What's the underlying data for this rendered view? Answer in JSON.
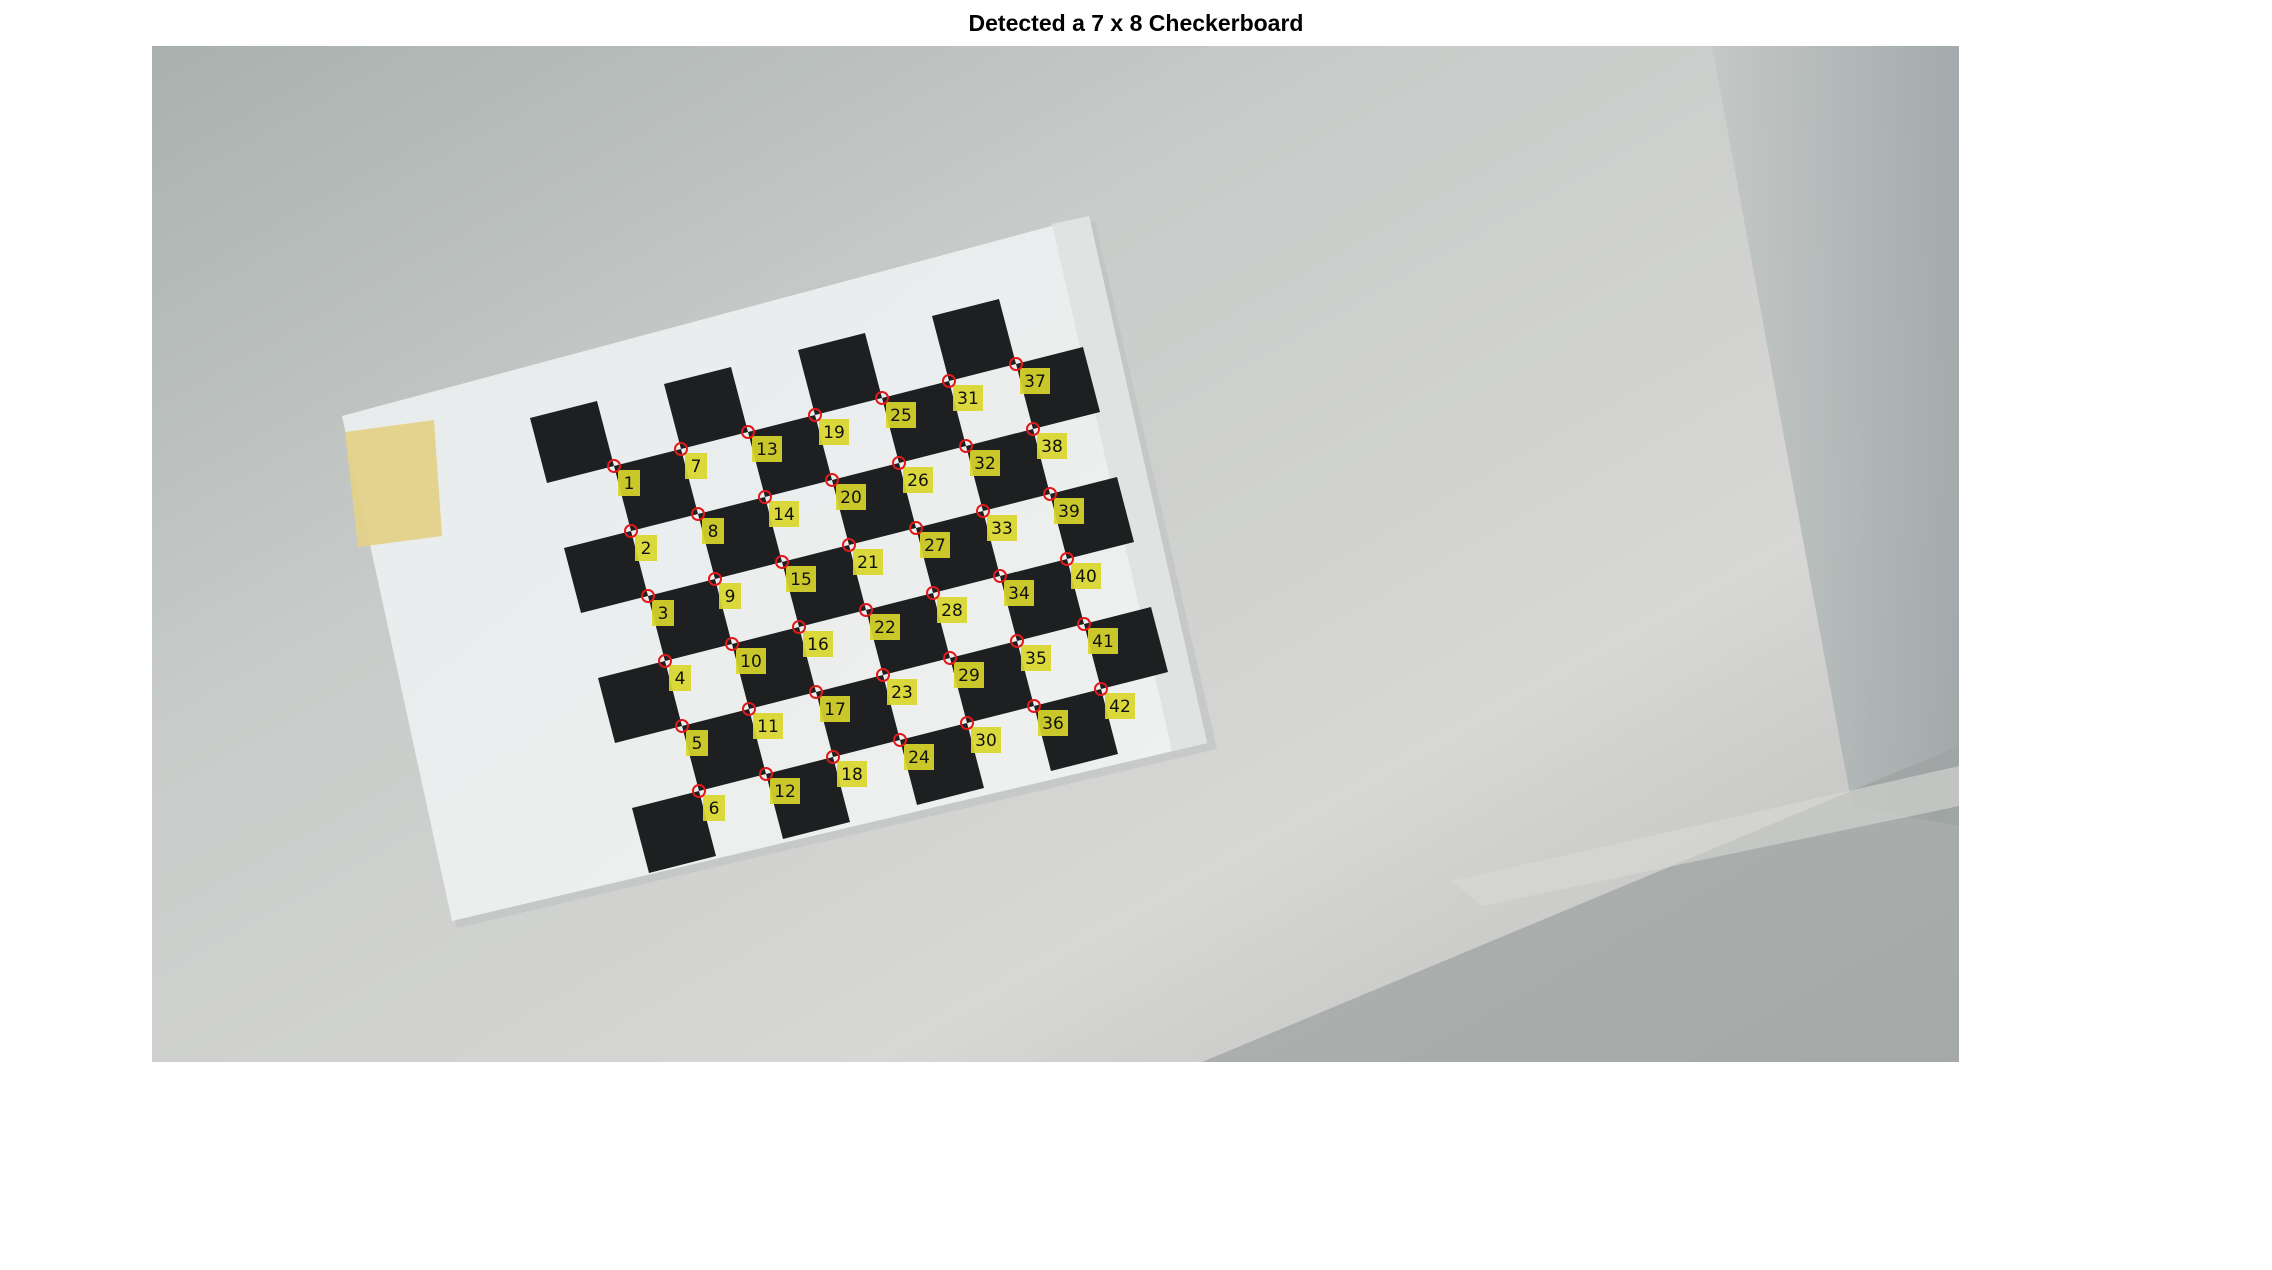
{
  "figure": {
    "title": "Detected a 7 x 8 Checkerboard"
  },
  "image": {
    "subject": "checkerboard-calibration-photo"
  },
  "detected_points": {
    "labels": [
      "1",
      "2",
      "3",
      "4",
      "5",
      "6",
      "7",
      "8",
      "9",
      "10",
      "11",
      "12",
      "13",
      "14",
      "15",
      "16",
      "17",
      "18",
      "19",
      "20",
      "21",
      "22",
      "23",
      "24",
      "25",
      "26",
      "27",
      "28",
      "29",
      "30",
      "31",
      "32",
      "33",
      "34",
      "35",
      "36",
      "37",
      "38",
      "39",
      "40",
      "41",
      "42"
    ],
    "marker_color": "#e0191b",
    "label_bg_color": "#d8d62a"
  }
}
